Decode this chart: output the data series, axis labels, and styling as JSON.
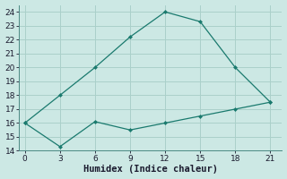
{
  "xlabel": "Humidex (Indice chaleur)",
  "line1_x": [
    0,
    3,
    6,
    9,
    12,
    15,
    18,
    21
  ],
  "line1_y": [
    16.0,
    18.0,
    20.0,
    22.2,
    24.0,
    23.3,
    20.0,
    17.5
  ],
  "line2_x": [
    0,
    3,
    6,
    9,
    12,
    15,
    18,
    21
  ],
  "line2_y": [
    16.0,
    14.3,
    16.1,
    15.5,
    16.0,
    16.5,
    17.0,
    17.5
  ],
  "line_color": "#1a7a6e",
  "bg_color": "#cce8e4",
  "grid_color": "#aad0ca",
  "xlim": [
    -0.5,
    22
  ],
  "ylim": [
    14,
    24.5
  ],
  "xticks": [
    0,
    3,
    6,
    9,
    12,
    15,
    18,
    21
  ],
  "yticks": [
    14,
    15,
    16,
    17,
    18,
    19,
    20,
    21,
    22,
    23,
    24
  ],
  "tick_fontsize": 6.5,
  "xlabel_fontsize": 7.5
}
